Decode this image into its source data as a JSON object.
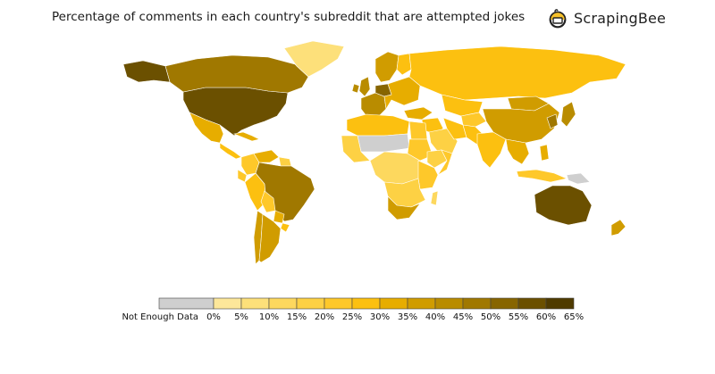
{
  "title": "Percentage of comments in each country's subreddit that are attempted jokes",
  "brand": {
    "name": "ScrapingBee",
    "icon": "bee-icon"
  },
  "colors": {
    "no_data": "#cfcfcf",
    "scale": [
      "#fde79a",
      "#fde07a",
      "#fdd85e",
      "#fdd144",
      "#fec82a",
      "#fcc010",
      "#e7ad00",
      "#d09c00",
      "#b98c00",
      "#a07800",
      "#876500",
      "#6b5000",
      "#4f3b00"
    ]
  },
  "legend": {
    "no_data_label": "Not Enough Data",
    "tick_labels": [
      "0%",
      "5%",
      "10%",
      "15%",
      "20%",
      "25%",
      "30%",
      "35%",
      "40%",
      "45%",
      "50%",
      "55%",
      "60%",
      "65%"
    ]
  },
  "chart_data": {
    "type": "choropleth",
    "value_unit": "% of comments",
    "range": [
      0,
      65
    ],
    "regions": [
      {
        "name": "USA",
        "bin": 12
      },
      {
        "name": "Canada",
        "bin": 10
      },
      {
        "name": "Alaska",
        "bin": 12
      },
      {
        "name": "Greenland",
        "bin": 2
      },
      {
        "name": "Mexico",
        "bin": 7
      },
      {
        "name": "Central America",
        "bin": 6
      },
      {
        "name": "Caribbean",
        "bin": 7
      },
      {
        "name": "Colombia",
        "bin": 5
      },
      {
        "name": "Venezuela",
        "bin": 7
      },
      {
        "name": "Guianas",
        "bin": 4
      },
      {
        "name": "Peru",
        "bin": 6
      },
      {
        "name": "Ecuador",
        "bin": 5
      },
      {
        "name": "Brazil",
        "bin": 10
      },
      {
        "name": "Bolivia",
        "bin": 5
      },
      {
        "name": "Paraguay",
        "bin": 7
      },
      {
        "name": "Chile",
        "bin": 8
      },
      {
        "name": "Argentina",
        "bin": 8
      },
      {
        "name": "Uruguay",
        "bin": 6
      },
      {
        "name": "UK",
        "bin": 9
      },
      {
        "name": "Ireland",
        "bin": 9
      },
      {
        "name": "Scandinavia",
        "bin": 8
      },
      {
        "name": "Finland",
        "bin": 6
      },
      {
        "name": "Western Europe",
        "bin": 9
      },
      {
        "name": "Germany",
        "bin": 11
      },
      {
        "name": "Eastern Europe",
        "bin": 7
      },
      {
        "name": "Russia",
        "bin": 6
      },
      {
        "name": "Kazakhstan",
        "bin": 6
      },
      {
        "name": "Central Asia",
        "bin": 5
      },
      {
        "name": "Turkey",
        "bin": 7
      },
      {
        "name": "Middle East",
        "bin": 6
      },
      {
        "name": "Saudi Arabia",
        "bin": 4
      },
      {
        "name": "Iran",
        "bin": 6
      },
      {
        "name": "Afghanistan/Pakistan",
        "bin": 6
      },
      {
        "name": "India",
        "bin": 6
      },
      {
        "name": "Mongolia",
        "bin": 8
      },
      {
        "name": "China",
        "bin": 8
      },
      {
        "name": "Korea",
        "bin": 10
      },
      {
        "name": "Japan",
        "bin": 9
      },
      {
        "name": "Southeast Asia",
        "bin": 7
      },
      {
        "name": "Philippines",
        "bin": 7
      },
      {
        "name": "Indonesia",
        "bin": 5
      },
      {
        "name": "New Guinea",
        "bin": 0
      },
      {
        "name": "Australia",
        "bin": 12
      },
      {
        "name": "New Zealand",
        "bin": 8
      },
      {
        "name": "North Africa",
        "bin": 6
      },
      {
        "name": "Egypt",
        "bin": 5
      },
      {
        "name": "Sahel",
        "bin": 0
      },
      {
        "name": "West Africa",
        "bin": 4
      },
      {
        "name": "Central Africa",
        "bin": 3
      },
      {
        "name": "Sudan",
        "bin": 5
      },
      {
        "name": "Ethiopia",
        "bin": 4
      },
      {
        "name": "Somalia",
        "bin": 5
      },
      {
        "name": "East Africa",
        "bin": 5
      },
      {
        "name": "Southern Africa",
        "bin": 4
      },
      {
        "name": "South Africa",
        "bin": 8
      },
      {
        "name": "Madagascar",
        "bin": 3
      }
    ]
  }
}
